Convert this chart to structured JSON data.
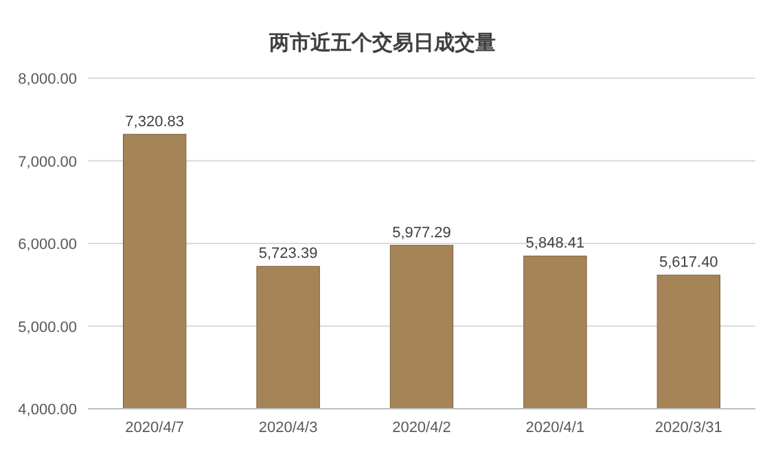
{
  "chart_data": {
    "type": "bar",
    "title": "两市近五个交易日成交量",
    "categories": [
      "2020/4/7",
      "2020/4/3",
      "2020/4/2",
      "2020/4/1",
      "2020/3/31"
    ],
    "values": [
      7320.83,
      5723.39,
      5977.29,
      5848.41,
      5617.4
    ],
    "value_labels": [
      "7,320.83",
      "5,723.39",
      "5,977.29",
      "5,848.41",
      "5,617.40"
    ],
    "color": "#a58458",
    "ylim": [
      4000,
      8000
    ],
    "yticks": [
      {
        "value": 4000,
        "label": "4,000.00"
      },
      {
        "value": 5000,
        "label": "5,000.00"
      },
      {
        "value": 6000,
        "label": "6,000.00"
      },
      {
        "value": 7000,
        "label": "7,000.00"
      },
      {
        "value": 8000,
        "label": "8,000.00"
      }
    ],
    "grid": "y"
  }
}
